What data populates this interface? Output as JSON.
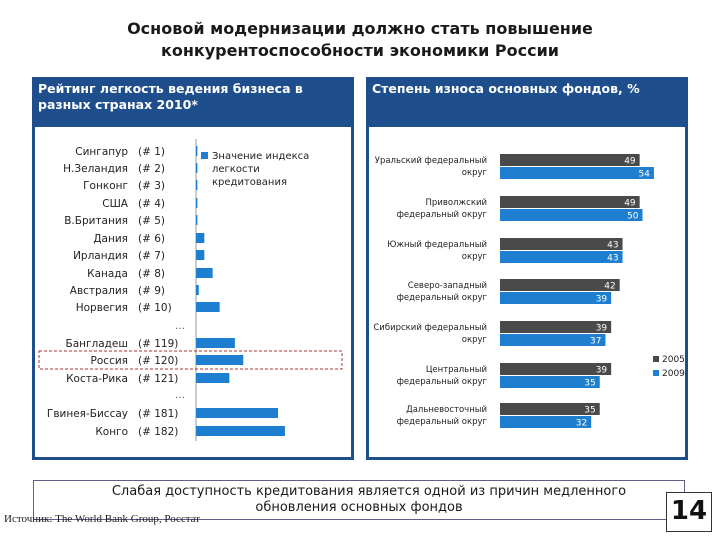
{
  "slide": {
    "title_line1": "Основой модернизации должно стать повышение",
    "title_line2": "конкурентоспособности экономики России",
    "bottom_line1": "Слабая доступность кредитования является одной из причин медленного",
    "bottom_line2": "обновления основных фондов",
    "source": "Источник: The World Bank Group, Росстат",
    "page_number": "14"
  },
  "colors": {
    "panel": "#1f4e8c",
    "bar_blue": "#1e7fd0",
    "bar_dark": "#4a4a4a",
    "highlight_border": "#b03030"
  },
  "chart_data": [
    {
      "type": "bar",
      "orientation": "horizontal",
      "title_line1": "Рейтинг легкость ведения бизнеса в",
      "title_line2": "разных странах 2010*",
      "legend_line1": "Значение индекса",
      "legend_line2": "легкости",
      "legend_line3": "кредитования",
      "legend_position": "top-right",
      "highlighted": "Россия",
      "gap_marker": "…",
      "categories": [
        {
          "name": "Сингапур",
          "rank": "(# 1)",
          "value": 1
        },
        {
          "name": "Н.Зеландия",
          "rank": "(# 2)",
          "value": 1
        },
        {
          "name": "Гонконг",
          "rank": "(# 3)",
          "value": 1
        },
        {
          "name": "США",
          "rank": "(# 4)",
          "value": 1
        },
        {
          "name": "В.Британия",
          "rank": "(# 5)",
          "value": 1
        },
        {
          "name": "Дания",
          "rank": "(# 6)",
          "value": 6
        },
        {
          "name": "Ирландия",
          "rank": "(# 7)",
          "value": 6
        },
        {
          "name": "Канада",
          "rank": "(# 8)",
          "value": 12
        },
        {
          "name": "Австралия",
          "rank": "(# 9)",
          "value": 2
        },
        {
          "name": "Норвегия",
          "rank": "(# 10)",
          "value": 17
        },
        {
          "name": "Бангладеш",
          "rank": "(# 119)",
          "value": 28
        },
        {
          "name": "Россия",
          "rank": "(# 120)",
          "value": 34
        },
        {
          "name": "Коста-Рика",
          "rank": "(# 121)",
          "value": 24
        },
        {
          "name": "Гвинея-Биссау",
          "rank": "(# 181)",
          "value": 59
        },
        {
          "name": "Конго",
          "rank": "(# 182)",
          "value": 64
        }
      ]
    },
    {
      "type": "bar",
      "orientation": "horizontal",
      "title": "Степень износа основных фондов, %",
      "series": [
        {
          "name": "2005",
          "values": [
            49,
            49,
            43,
            42,
            39,
            39,
            35
          ]
        },
        {
          "name": "2009",
          "values": [
            54,
            50,
            43,
            39,
            37,
            35,
            32
          ]
        }
      ],
      "categories": [
        {
          "line1": "Уральский федеральный",
          "line2": "округ"
        },
        {
          "line1": "Приволжский",
          "line2": "федеральный округ"
        },
        {
          "line1": "Южный федеральный",
          "line2": "округ"
        },
        {
          "line1": "Северо-западный",
          "line2": "федеральный округ"
        },
        {
          "line1": "Сибирский федеральный",
          "line2": "округ"
        },
        {
          "line1": "Центральный",
          "line2": "федеральный округ"
        },
        {
          "line1": "Дальневосточный",
          "line2": "федеральный округ"
        }
      ],
      "legend_position": "right"
    }
  ]
}
